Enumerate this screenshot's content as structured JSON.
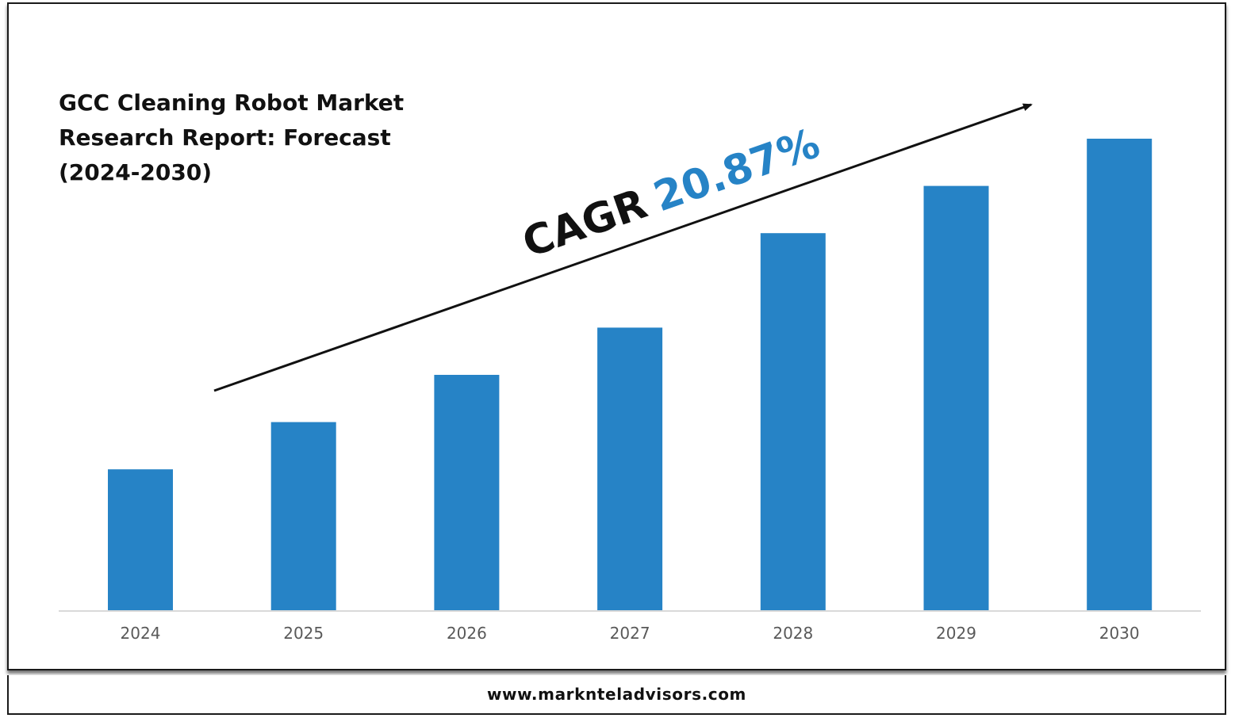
{
  "title_lines": [
    "GCC Cleaning Robot Market",
    "Research Report: Forecast",
    "(2024-2030)"
  ],
  "annotation": {
    "prefix": "CAGR",
    "value": "20.87%",
    "prefix_color": "#111111",
    "value_color": "#2683C6"
  },
  "footer": {
    "website": "www.marknteladvisors.com"
  },
  "colors": {
    "bar": "#2683C6",
    "axis": "#d9d9d9"
  },
  "chart_data": {
    "type": "bar",
    "categories": [
      "2024",
      "2025",
      "2026",
      "2027",
      "2028",
      "2029",
      "2030"
    ],
    "values": [
      30,
      40,
      50,
      60,
      80,
      90,
      100
    ],
    "ylim": [
      0,
      100
    ],
    "xlabel": "",
    "ylabel": "",
    "grid": false,
    "legend": "none"
  }
}
